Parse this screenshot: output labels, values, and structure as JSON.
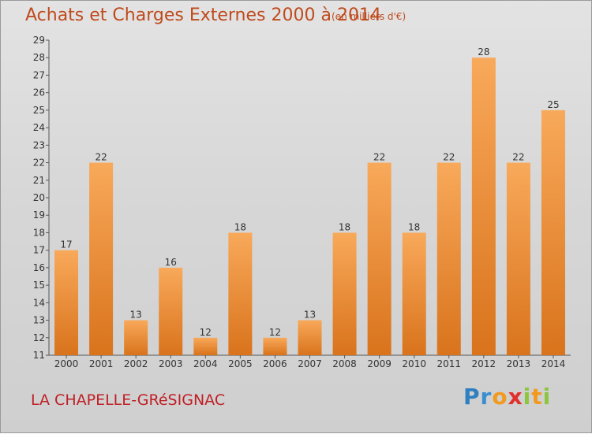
{
  "header": {
    "title": "Achats et Charges Externes 2000 à 2014",
    "unit": "(en milliers d'€)"
  },
  "footer": {
    "commune": "LA CHAPELLE-GRéSIGNAC",
    "logo_letters": [
      {
        "ch": "P",
        "color": "#2f7fc1"
      },
      {
        "ch": "r",
        "color": "#3a8ed0"
      },
      {
        "ch": "o",
        "color": "#f29a1e"
      },
      {
        "ch": "x",
        "color": "#e0302c"
      },
      {
        "ch": "i",
        "color": "#8cc63f"
      },
      {
        "ch": "t",
        "color": "#f29a1e"
      },
      {
        "ch": "i",
        "color": "#8cc63f"
      }
    ]
  },
  "colors": {
    "bar_top": "#f8a95a",
    "bar_bottom": "#d9731c",
    "title": "#bf4a1d",
    "commune": "#bf1f25"
  },
  "chart_data": {
    "type": "bar",
    "title": "Achats et Charges Externes 2000 à 2014",
    "subtitle": "(en milliers d'€)",
    "categories": [
      "2000",
      "2001",
      "2002",
      "2003",
      "2004",
      "2005",
      "2006",
      "2007",
      "2008",
      "2009",
      "2010",
      "2011",
      "2012",
      "2013",
      "2014"
    ],
    "values": [
      17,
      22,
      13,
      16,
      12,
      18,
      12,
      13,
      18,
      22,
      18,
      22,
      28,
      22,
      25
    ],
    "ylim": [
      11,
      29
    ],
    "yticks": [
      11,
      12,
      13,
      14,
      15,
      16,
      17,
      18,
      19,
      20,
      21,
      22,
      23,
      24,
      25,
      26,
      27,
      28,
      29
    ],
    "grid": false,
    "legend": "none"
  }
}
